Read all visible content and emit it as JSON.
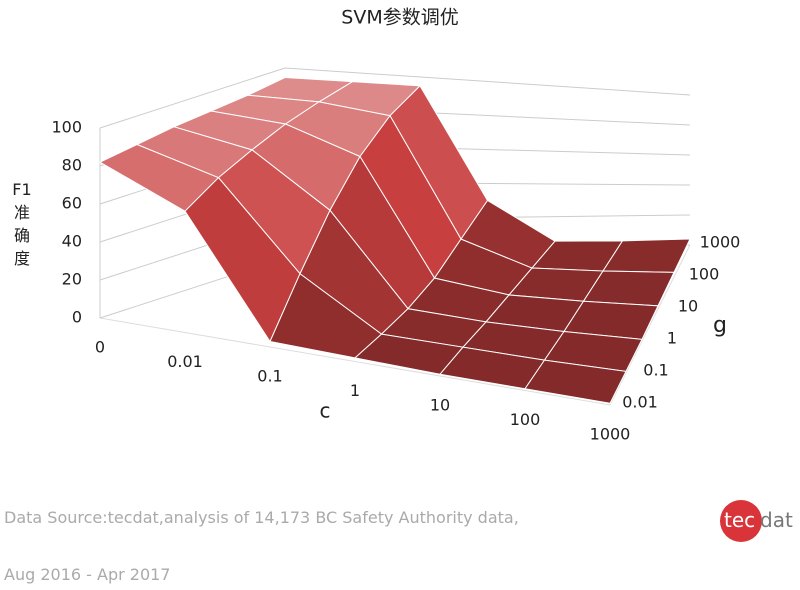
{
  "chart_data": {
    "type": "surface",
    "title": "SVM参数调优",
    "x_label": "c",
    "y_label": "g",
    "z_label": "F1准确度",
    "x_categories": [
      "0",
      "0.01",
      "0.1",
      "1",
      "10",
      "100",
      "1000"
    ],
    "series": [
      {
        "name": "0.01",
        "values": [
          82,
          65,
          3,
          2,
          1,
          1,
          1
        ]
      },
      {
        "name": "0.1",
        "values": [
          85,
          75,
          30,
          3,
          2,
          1,
          1
        ]
      },
      {
        "name": "1",
        "values": [
          88,
          82,
          55,
          5,
          2,
          1,
          1
        ]
      },
      {
        "name": "10",
        "values": [
          90,
          88,
          75,
          10,
          3,
          2,
          2
        ]
      },
      {
        "name": "100",
        "values": [
          92,
          92,
          88,
          20,
          4,
          3,
          3
        ]
      },
      {
        "name": "1000",
        "values": [
          95,
          95,
          95,
          30,
          5,
          4,
          4
        ]
      }
    ],
    "color": "#c94040",
    "zlim": [
      0,
      100
    ],
    "zticks": [
      0,
      20,
      40,
      60,
      80,
      100
    ],
    "grid": true
  },
  "footer": {
    "source": "Data Source:tecdat,analysis of 14,173 BC Safety Authority data,",
    "period": "Aug 2016 - Apr 2017"
  },
  "logo": {
    "part1": "tec",
    "part2": "dat"
  }
}
